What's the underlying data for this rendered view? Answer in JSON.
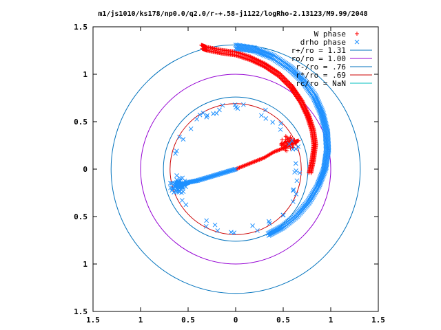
{
  "chart_data": {
    "type": "scatter",
    "title": "m1/js1010/ks178/np0.0/q2.0/r-+.58-j1122/logRho-2.13123/M9.99/2048",
    "xlim": [
      -1.5,
      1.5
    ],
    "ylim": [
      -1.5,
      1.5
    ],
    "x_ticks": [
      -1.5,
      -1,
      -0.5,
      0,
      0.5,
      1,
      1.5
    ],
    "y_ticks": [
      -1.5,
      -1,
      -0.5,
      0,
      0.5,
      1,
      1.5
    ],
    "x_tick_labels": [
      "1.5",
      "1",
      "0.5",
      "0",
      "0.5",
      "1",
      "1.5"
    ],
    "y_tick_labels": [
      "1.5",
      "1",
      "0.5",
      "0",
      "0.5",
      "1",
      "1.5"
    ],
    "grid": false,
    "legend_position": "top-right",
    "series": [
      {
        "name": "W phase",
        "marker": "+",
        "color": "#ff0000",
        "description": "spiral from center to r~0.69 then outer arm up to (-0.35,1.27)",
        "arc_points": [
          [
            0.0,
            0.0
          ],
          [
            0.1,
            0.04
          ],
          [
            0.2,
            0.08
          ],
          [
            0.3,
            0.12
          ],
          [
            0.4,
            0.18
          ],
          [
            0.5,
            0.22
          ],
          [
            0.55,
            0.25
          ],
          [
            0.6,
            0.28
          ],
          [
            0.66,
            0.3
          ]
        ],
        "outer_arm": [
          [
            0.77,
            -0.04
          ],
          [
            0.8,
            0.1
          ],
          [
            0.82,
            0.25
          ],
          [
            0.8,
            0.4
          ],
          [
            0.75,
            0.55
          ],
          [
            0.68,
            0.7
          ],
          [
            0.58,
            0.85
          ],
          [
            0.45,
            0.98
          ],
          [
            0.3,
            1.08
          ],
          [
            0.15,
            1.15
          ],
          [
            0.0,
            1.2
          ],
          [
            -0.15,
            1.22
          ],
          [
            -0.3,
            1.25
          ],
          [
            -0.35,
            1.27
          ]
        ]
      },
      {
        "name": "drho phase",
        "marker": "x",
        "color": "#1e90ff",
        "description": "spiral from center leftward to r~0.69 then scattered ring and outer arm",
        "arc_points": [
          [
            0.0,
            0.0
          ],
          [
            -0.1,
            -0.03
          ],
          [
            -0.2,
            -0.06
          ],
          [
            -0.3,
            -0.09
          ],
          [
            -0.4,
            -0.12
          ],
          [
            -0.5,
            -0.14
          ],
          [
            -0.55,
            -0.16
          ],
          [
            -0.6,
            -0.17
          ]
        ],
        "outer_arm": [
          [
            0.35,
            -0.7
          ],
          [
            0.5,
            -0.62
          ],
          [
            0.65,
            -0.5
          ],
          [
            0.78,
            -0.35
          ],
          [
            0.88,
            -0.18
          ],
          [
            0.95,
            0.0
          ],
          [
            0.98,
            0.2
          ],
          [
            0.97,
            0.4
          ],
          [
            0.92,
            0.6
          ],
          [
            0.84,
            0.78
          ],
          [
            0.72,
            0.95
          ],
          [
            0.58,
            1.08
          ],
          [
            0.4,
            1.2
          ],
          [
            0.2,
            1.28
          ],
          [
            0.0,
            1.31
          ]
        ]
      },
      {
        "name": "r+/ro = 1.31",
        "type": "circle",
        "radius": 1.31,
        "color": "#0072bd"
      },
      {
        "name": "ro/ro = 1.00",
        "type": "circle",
        "radius": 1.0,
        "color": "#9400d3"
      },
      {
        "name": "r-/ro = .76",
        "type": "circle",
        "radius": 0.76,
        "color": "#0072bd"
      },
      {
        "name": "r*/ro = .69",
        "type": "circle",
        "radius": 0.69,
        "color": "#cc0000"
      },
      {
        "name": "rc/ro = NaN",
        "type": "circle",
        "radius": null,
        "color": "#00bfbf"
      }
    ]
  }
}
